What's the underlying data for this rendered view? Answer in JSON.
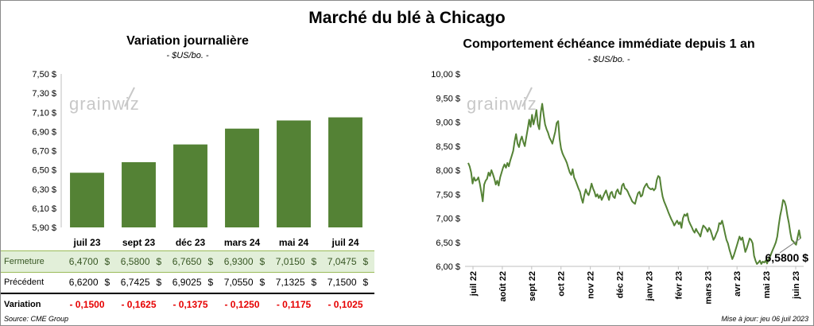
{
  "title": "Marché du blé à Chicago",
  "source": "Source: CME Group",
  "updated": "Mise à jour: jeu 06 juil 2023",
  "watermark": "grainwiz",
  "colors": {
    "bar": "#548235",
    "line": "#548235",
    "negative": "#e60000",
    "highlight_bg": "#e2efd9"
  },
  "table": {
    "labels": {
      "close": "Fermeture",
      "previous": "Précédent",
      "variation": "Variation"
    },
    "currency_symbol": "$",
    "close": [
      "6,4700",
      "6,5800",
      "6,7650",
      "6,9300",
      "7,0150",
      "7,0475"
    ],
    "previous": [
      "6,6200",
      "6,7425",
      "6,9025",
      "7,0550",
      "7,1325",
      "7,1500"
    ],
    "variation": [
      "- 0,1500",
      "- 0,1625",
      "- 0,1375",
      "- 0,1250",
      "- 0,1175",
      "- 0,1025"
    ]
  },
  "chart_data": [
    {
      "type": "bar",
      "title": "Variation  journalière",
      "subtitle": "- $US/bo. -",
      "categories": [
        "juil 23",
        "sept 23",
        "déc 23",
        "mars 24",
        "mai 24",
        "juil 24"
      ],
      "values": [
        6.47,
        6.58,
        6.765,
        6.93,
        7.015,
        7.0475
      ],
      "ylim": [
        5.9,
        7.5
      ],
      "yticks": [
        "5,90 $",
        "6,10 $",
        "6,30 $",
        "6,50 $",
        "6,70 $",
        "6,90 $",
        "7,10 $",
        "7,30 $",
        "7,50 $"
      ],
      "grid": false
    },
    {
      "type": "line",
      "title": "Comportement  échéance immédiate depuis 1 an",
      "subtitle": "- $US/bo. -",
      "xticks": [
        "juil 22",
        "août 22",
        "sept 22",
        "oct 22",
        "nov 22",
        "déc 22",
        "janv 23",
        "févr 23",
        "mars 23",
        "avr 23",
        "mai 23",
        "juin 23"
      ],
      "x_start": "2022-07-06",
      "x_end": "2023-07-06",
      "ylim": [
        6.0,
        10.0
      ],
      "yticks": [
        "6,00 $",
        "6,50 $",
        "7,00 $",
        "7,50 $",
        "8,00 $",
        "8,50 $",
        "9,00 $",
        "9,50 $",
        "10,00 $"
      ],
      "last_value_label": "6,5800 $",
      "series": [
        {
          "values": [
            8.15,
            8.08,
            7.95,
            7.72,
            7.85,
            7.78,
            7.8,
            7.85,
            7.72,
            7.55,
            7.35,
            7.7,
            7.78,
            7.82,
            7.95,
            7.88,
            8.0,
            7.92,
            7.82,
            7.7,
            7.78,
            7.68,
            7.85,
            7.95,
            8.05,
            8.12,
            8.05,
            8.15,
            8.08,
            8.2,
            8.3,
            8.4,
            8.6,
            8.75,
            8.55,
            8.48,
            8.62,
            8.7,
            8.58,
            8.5,
            8.68,
            8.85,
            9.05,
            8.9,
            9.15,
            8.95,
            9.08,
            9.25,
            8.95,
            8.85,
            9.2,
            9.38,
            9.15,
            8.95,
            8.85,
            8.78,
            8.68,
            8.62,
            8.55,
            8.68,
            8.8,
            8.98,
            9.02,
            8.65,
            8.45,
            8.35,
            8.28,
            8.22,
            8.15,
            8.05,
            7.95,
            7.9,
            8.02,
            7.85,
            7.78,
            7.7,
            7.62,
            7.55,
            7.42,
            7.32,
            7.48,
            7.6,
            7.52,
            7.48,
            7.58,
            7.72,
            7.62,
            7.55,
            7.45,
            7.5,
            7.42,
            7.48,
            7.38,
            7.45,
            7.52,
            7.58,
            7.48,
            7.38,
            7.52,
            7.55,
            7.45,
            7.42,
            7.55,
            7.6,
            7.52,
            7.5,
            7.68,
            7.72,
            7.62,
            7.6,
            7.55,
            7.48,
            7.42,
            7.35,
            7.32,
            7.3,
            7.42,
            7.52,
            7.55,
            7.45,
            7.48,
            7.62,
            7.68,
            7.72,
            7.65,
            7.62,
            7.6,
            7.62,
            7.58,
            7.62,
            7.8,
            7.88,
            7.85,
            7.62,
            7.45,
            7.35,
            7.28,
            7.2,
            7.12,
            7.05,
            6.98,
            6.92,
            6.85,
            6.9,
            6.95,
            6.88,
            6.92,
            6.8,
            7.0,
            7.08,
            7.05,
            7.1,
            6.95,
            6.88,
            6.82,
            6.75,
            6.7,
            6.78,
            6.72,
            6.68,
            6.62,
            6.75,
            6.85,
            6.82,
            6.78,
            6.72,
            6.8,
            6.75,
            6.65,
            6.55,
            6.6,
            6.68,
            6.75,
            6.9,
            6.88,
            6.95,
            6.82,
            6.68,
            6.55,
            6.48,
            6.35,
            6.25,
            6.15,
            6.22,
            6.32,
            6.42,
            6.52,
            6.62,
            6.55,
            6.6,
            6.45,
            6.3,
            6.38,
            6.48,
            6.58,
            6.55,
            6.48,
            6.22,
            6.12,
            6.05,
            6.08,
            6.12,
            6.05,
            6.1,
            6.08,
            6.12,
            6.06,
            6.15,
            6.2,
            6.28,
            6.35,
            6.42,
            6.5,
            6.62,
            6.85,
            7.05,
            7.2,
            7.38,
            7.35,
            7.25,
            7.05,
            6.9,
            6.7,
            6.55,
            6.52,
            6.48,
            6.45,
            6.6,
            6.75,
            6.58
          ]
        }
      ]
    }
  ]
}
